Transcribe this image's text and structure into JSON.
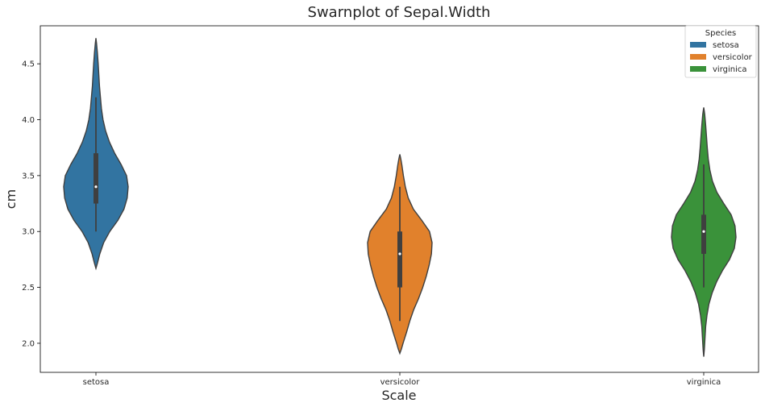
{
  "chart_data": {
    "type": "violin",
    "title": "Swarnplot of Sepal.Width",
    "xlabel": "Scale",
    "ylabel": "cm",
    "categories": [
      "setosa",
      "versicolor",
      "virginica"
    ],
    "ylim": [
      1.74,
      4.84
    ],
    "yticks": [
      "2.0",
      "2.5",
      "3.0",
      "3.5",
      "4.0",
      "4.5"
    ],
    "grid": false,
    "legend": {
      "title": "Species",
      "placement": "top-right",
      "entries": [
        "setosa",
        "versicolor",
        "virginica"
      ]
    },
    "series": [
      {
        "name": "setosa",
        "color": "#3274a1",
        "kde_min": 2.67,
        "kde_max": 4.73,
        "whisker": [
          3.0,
          4.2
        ],
        "box": [
          3.25,
          3.7
        ],
        "median": 3.4,
        "profile": [
          [
            2.67,
            0.0
          ],
          [
            2.72,
            0.05
          ],
          [
            2.8,
            0.12
          ],
          [
            2.9,
            0.24
          ],
          [
            3.0,
            0.43
          ],
          [
            3.1,
            0.68
          ],
          [
            3.2,
            0.87
          ],
          [
            3.3,
            0.97
          ],
          [
            3.4,
            1.0
          ],
          [
            3.5,
            0.95
          ],
          [
            3.6,
            0.78
          ],
          [
            3.7,
            0.58
          ],
          [
            3.8,
            0.42
          ],
          [
            3.9,
            0.3
          ],
          [
            4.0,
            0.22
          ],
          [
            4.1,
            0.17
          ],
          [
            4.2,
            0.14
          ],
          [
            4.3,
            0.11
          ],
          [
            4.4,
            0.09
          ],
          [
            4.5,
            0.07
          ],
          [
            4.6,
            0.045
          ],
          [
            4.68,
            0.02
          ],
          [
            4.73,
            0.0
          ]
        ]
      },
      {
        "name": "versicolor",
        "color": "#e1812c",
        "kde_min": 1.91,
        "kde_max": 3.69,
        "whisker": [
          2.2,
          3.4
        ],
        "box": [
          2.5,
          3.0
        ],
        "median": 2.8,
        "profile": [
          [
            1.91,
            0.0
          ],
          [
            1.95,
            0.05
          ],
          [
            2.0,
            0.1
          ],
          [
            2.1,
            0.21
          ],
          [
            2.2,
            0.31
          ],
          [
            2.3,
            0.43
          ],
          [
            2.4,
            0.58
          ],
          [
            2.5,
            0.71
          ],
          [
            2.6,
            0.82
          ],
          [
            2.7,
            0.91
          ],
          [
            2.8,
            0.98
          ],
          [
            2.9,
            1.0
          ],
          [
            3.0,
            0.92
          ],
          [
            3.1,
            0.68
          ],
          [
            3.2,
            0.42
          ],
          [
            3.3,
            0.26
          ],
          [
            3.4,
            0.17
          ],
          [
            3.5,
            0.11
          ],
          [
            3.6,
            0.06
          ],
          [
            3.65,
            0.03
          ],
          [
            3.69,
            0.0
          ]
        ]
      },
      {
        "name": "virginica",
        "color": "#3a923a",
        "kde_min": 1.88,
        "kde_max": 4.11,
        "whisker": [
          2.5,
          3.6
        ],
        "box": [
          2.8,
          3.15
        ],
        "median": 3.0,
        "profile": [
          [
            1.88,
            0.0
          ],
          [
            1.95,
            0.02
          ],
          [
            2.05,
            0.04
          ],
          [
            2.15,
            0.06
          ],
          [
            2.25,
            0.1
          ],
          [
            2.35,
            0.16
          ],
          [
            2.45,
            0.26
          ],
          [
            2.55,
            0.4
          ],
          [
            2.65,
            0.58
          ],
          [
            2.75,
            0.8
          ],
          [
            2.85,
            0.95
          ],
          [
            2.95,
            1.0
          ],
          [
            3.05,
            0.97
          ],
          [
            3.15,
            0.85
          ],
          [
            3.25,
            0.62
          ],
          [
            3.35,
            0.41
          ],
          [
            3.45,
            0.27
          ],
          [
            3.55,
            0.19
          ],
          [
            3.65,
            0.14
          ],
          [
            3.75,
            0.11
          ],
          [
            3.85,
            0.085
          ],
          [
            3.95,
            0.06
          ],
          [
            4.05,
            0.03
          ],
          [
            4.11,
            0.0
          ]
        ]
      }
    ]
  }
}
